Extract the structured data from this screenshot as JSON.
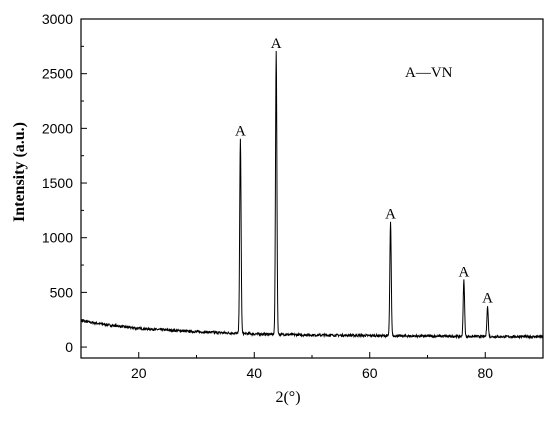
{
  "chart_data": {
    "type": "line",
    "title": "",
    "xlabel": "2(°)",
    "ylabel": "Intensity (a.u.)",
    "xlim": [
      10,
      90
    ],
    "ylim": [
      -100,
      3000
    ],
    "xticks": [
      20,
      40,
      60,
      80
    ],
    "yticks": [
      0,
      500,
      1000,
      1500,
      2000,
      2500,
      3000
    ],
    "grid": false,
    "legend": {
      "text": "A—VN",
      "placement": "top-right"
    },
    "baseline": [
      [
        10,
        240
      ],
      [
        15,
        200
      ],
      [
        20,
        170
      ],
      [
        25,
        155
      ],
      [
        30,
        140
      ],
      [
        35,
        130
      ],
      [
        40,
        120
      ],
      [
        45,
        115
      ],
      [
        50,
        110
      ],
      [
        55,
        108
      ],
      [
        60,
        105
      ],
      [
        65,
        102
      ],
      [
        70,
        100
      ],
      [
        75,
        98
      ],
      [
        80,
        96
      ],
      [
        85,
        95
      ],
      [
        90,
        95
      ]
    ],
    "peaks": [
      {
        "label": "A",
        "x": 37.6,
        "y": 1900
      },
      {
        "label": "A",
        "x": 43.8,
        "y": 2700
      },
      {
        "label": "A",
        "x": 63.6,
        "y": 1140
      },
      {
        "label": "A",
        "x": 76.3,
        "y": 610
      },
      {
        "label": "A",
        "x": 80.4,
        "y": 370
      }
    ]
  }
}
